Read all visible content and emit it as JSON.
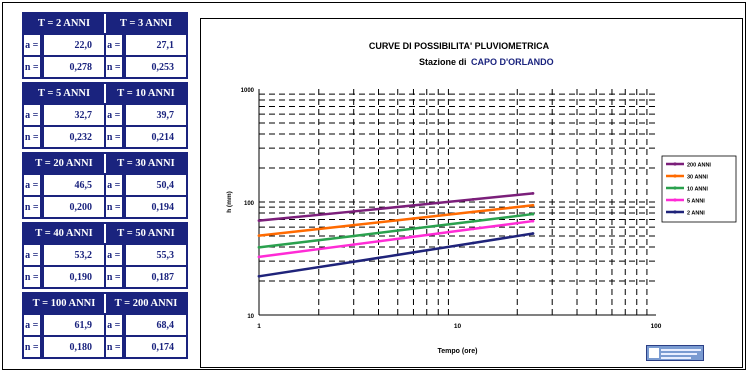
{
  "tables": [
    {
      "left_header": "T = 2 ANNI",
      "right_header": "T = 3 ANNI",
      "a_label": "a =",
      "n_label": "n =",
      "a_left": "22,0",
      "n_left": "0,278",
      "a_right": "27,1",
      "n_right": "0,253"
    },
    {
      "left_header": "T = 5 ANNI",
      "right_header": "T = 10 ANNI",
      "a_label": "a =",
      "n_label": "n =",
      "a_left": "32,7",
      "n_left": "0,232",
      "a_right": "39,7",
      "n_right": "0,214"
    },
    {
      "left_header": "T = 20 ANNI",
      "right_header": "T = 30 ANNI",
      "a_label": "a =",
      "n_label": "n =",
      "a_left": "46,5",
      "n_left": "0,200",
      "a_right": "50,4",
      "n_right": "0,194"
    },
    {
      "left_header": "T = 40 ANNI",
      "right_header": "T = 50 ANNI",
      "a_label": "a =",
      "n_label": "n =",
      "a_left": "53,2",
      "n_left": "0,190",
      "a_right": "55,3",
      "n_right": "0,187"
    },
    {
      "left_header": "T = 100 ANNI",
      "right_header": "T = 200 ANNI",
      "a_label": "a =",
      "n_label": "n =",
      "a_left": "61,9",
      "n_left": "0,180",
      "a_right": "68,4",
      "n_right": "0,174"
    }
  ],
  "chart_data": {
    "type": "line",
    "title": "CURVE DI POSSIBILITA' PLUVIOMETRICA",
    "subtitle_prefix": "Stazione di",
    "subtitle_station": "CAPO D'ORLANDO",
    "xlabel": "Tempo (ore)",
    "ylabel": "h (mm)",
    "x_scale": "log",
    "y_scale": "log",
    "xlim": [
      1,
      100
    ],
    "ylim": [
      10,
      1000
    ],
    "x_ticks": [
      "1",
      "10",
      "100"
    ],
    "y_ticks": [
      "10",
      "100",
      "1000"
    ],
    "grid": true,
    "legend_position": "right",
    "x": [
      1,
      3,
      6,
      12,
      24
    ],
    "series": [
      {
        "name": "200 ANNI",
        "color": "#7b1f7a",
        "values": [
          68.4,
          82.5,
          93.3,
          105.5,
          119.3
        ]
      },
      {
        "name": "30 ANNI",
        "color": "#ff6a00",
        "values": [
          50.4,
          62.4,
          71.4,
          81.7,
          93.5
        ]
      },
      {
        "name": "10 ANNI",
        "color": "#2aa14e",
        "values": [
          39.7,
          50.0,
          58.1,
          67.4,
          78.2
        ]
      },
      {
        "name": "5 ANNI",
        "color": "#ff2bd6",
        "values": [
          32.7,
          42.0,
          49.3,
          57.8,
          67.8
        ]
      },
      {
        "name": "2 ANNI",
        "color": "#1f237a",
        "values": [
          22.0,
          29.6,
          35.8,
          43.4,
          52.6
        ]
      }
    ]
  }
}
